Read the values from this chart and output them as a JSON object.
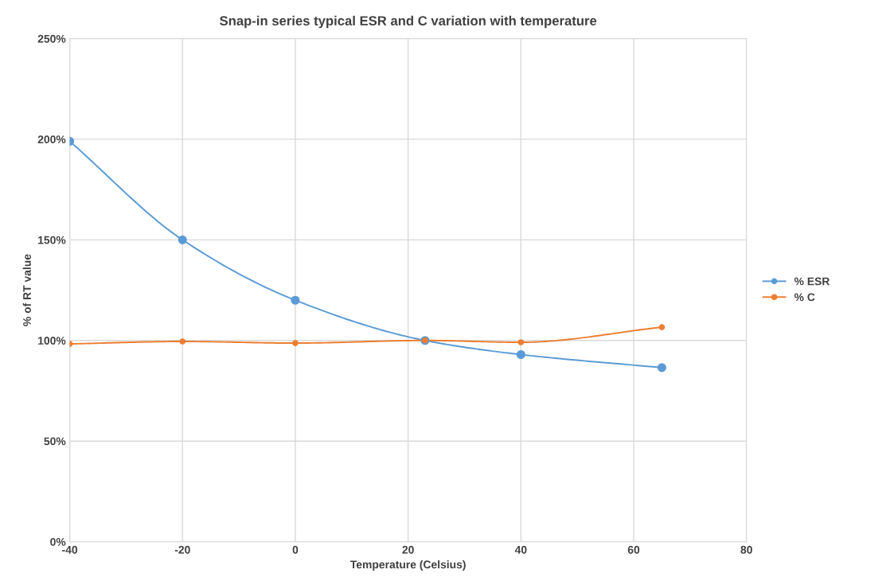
{
  "chart_data": {
    "type": "line",
    "title": "Snap-in series typical ESR and C variation with temperature",
    "xlabel": "Temperature (Celsius)",
    "ylabel": "% of RT value",
    "x": [
      -40,
      -20,
      0,
      23,
      40,
      65
    ],
    "series": [
      {
        "name": "% ESR",
        "color": "#5b9bd5",
        "values": [
          199,
          150,
          120,
          100,
          93,
          86.5
        ]
      },
      {
        "name": "% C",
        "color": "#ed7d31",
        "values": [
          98.3,
          99.5,
          98.7,
          100,
          99.1,
          106.6
        ]
      }
    ],
    "xlim": [
      -40,
      80
    ],
    "xticks": [
      -40,
      -20,
      0,
      20,
      40,
      60,
      80
    ],
    "ylim": [
      0,
      250
    ],
    "yticks": [
      {
        "value": 0,
        "label": "0%"
      },
      {
        "value": 50,
        "label": "50%"
      },
      {
        "value": 100,
        "label": "100%"
      },
      {
        "value": 150,
        "label": "150%"
      },
      {
        "value": 200,
        "label": "200%"
      },
      {
        "value": 250,
        "label": "250%"
      }
    ],
    "grid": true,
    "legend": "right",
    "marker": "circle",
    "line_style": "solid"
  }
}
